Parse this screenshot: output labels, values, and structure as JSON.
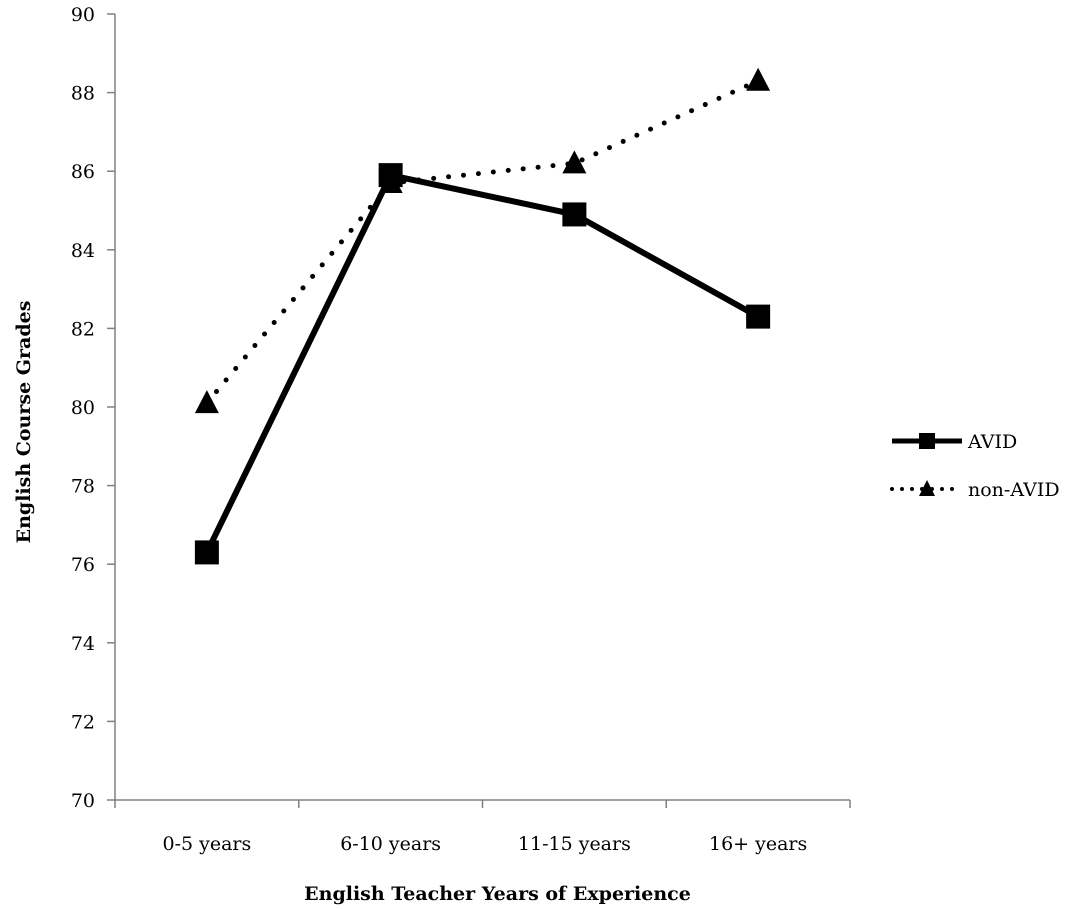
{
  "chart_data": {
    "type": "line",
    "title": "",
    "xlabel": "English Teacher Years of Experience",
    "ylabel": "English Course Grades",
    "categories": [
      "0-5 years",
      "6-10 years",
      "11-15 years",
      "16+ years"
    ],
    "ylim": [
      70,
      90
    ],
    "yticks": [
      "70",
      "72",
      "74",
      "76",
      "78",
      "80",
      "82",
      "84",
      "86",
      "88",
      "90"
    ],
    "grid": false,
    "legend_position": "right",
    "series": [
      {
        "name": "AVID",
        "values": [
          76.3,
          85.9,
          84.9,
          82.3
        ],
        "line_style": "solid",
        "marker": "square",
        "color": "#000000"
      },
      {
        "name": "non-AVID",
        "values": [
          80.1,
          85.7,
          86.2,
          88.3
        ],
        "line_style": "dotted",
        "marker": "triangle",
        "color": "#000000"
      }
    ]
  }
}
